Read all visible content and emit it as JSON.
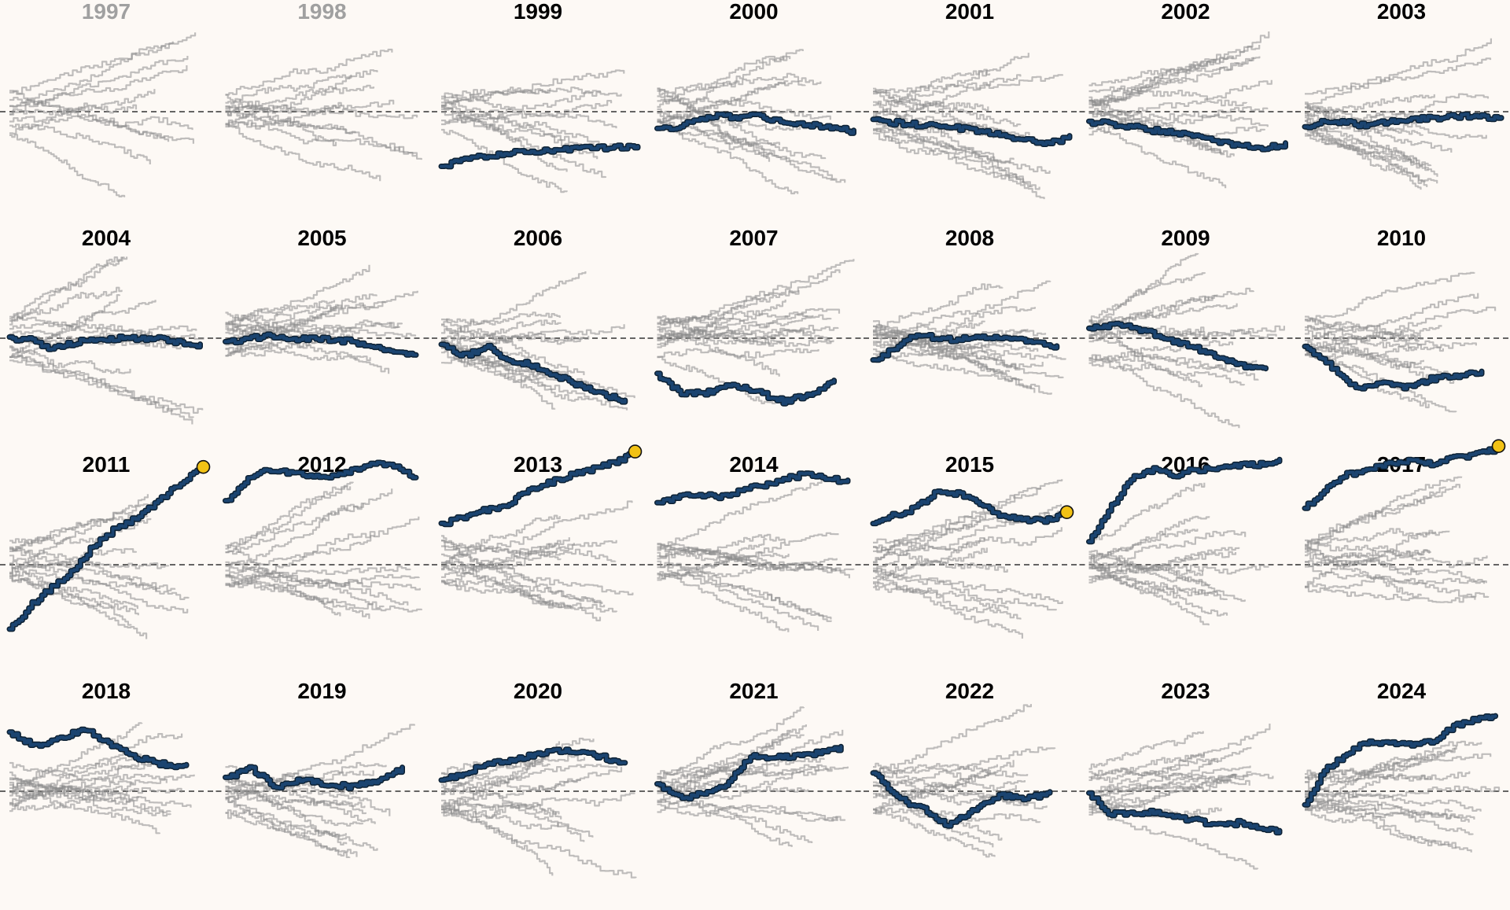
{
  "chart_data": {
    "type": "line",
    "layout": "small-multiples",
    "title": "",
    "xlabel": "",
    "ylabel": "",
    "baseline": 0,
    "grid": false,
    "legend": "none",
    "panels": [
      {
        "label": "1997",
        "label_color": "#a0a0a0",
        "background_series": 11,
        "highlight": null,
        "highlight_end_marker": false
      },
      {
        "label": "1998",
        "label_color": "#a0a0a0",
        "background_series": 12,
        "highlight": null,
        "highlight_end_marker": false
      },
      {
        "label": "1999",
        "label_color": "#000000",
        "background_series": 12,
        "highlight": [
          -0.62,
          -0.55,
          -0.5,
          -0.48,
          -0.46,
          -0.44,
          -0.43,
          -0.42,
          -0.41,
          -0.4,
          -0.4,
          -0.39,
          -0.4
        ],
        "highlight_end_marker": false
      },
      {
        "label": "2000",
        "label_color": "#000000",
        "background_series": 14,
        "highlight": [
          -0.2,
          -0.18,
          -0.08,
          -0.05,
          -0.06,
          -0.05,
          -0.1,
          -0.12,
          -0.15,
          -0.18,
          -0.22
        ],
        "highlight_end_marker": false
      },
      {
        "label": "2001",
        "label_color": "#000000",
        "background_series": 15,
        "highlight": [
          -0.1,
          -0.12,
          -0.14,
          -0.15,
          -0.17,
          -0.2,
          -0.24,
          -0.28,
          -0.32,
          -0.35,
          -0.28
        ],
        "highlight_end_marker": false
      },
      {
        "label": "2002",
        "label_color": "#000000",
        "background_series": 15,
        "highlight": [
          -0.12,
          -0.13,
          -0.16,
          -0.2,
          -0.22,
          -0.25,
          -0.3,
          -0.35,
          -0.38,
          -0.4,
          -0.36
        ],
        "highlight_end_marker": false
      },
      {
        "label": "2003",
        "label_color": "#000000",
        "background_series": 15,
        "highlight": [
          -0.18,
          -0.1,
          -0.12,
          -0.15,
          -0.12,
          -0.1,
          -0.08,
          -0.06,
          -0.05,
          -0.06,
          -0.08
        ],
        "highlight_end_marker": false
      },
      {
        "label": "2004",
        "label_color": "#000000",
        "background_series": 14,
        "highlight": [
          0.0,
          -0.02,
          -0.12,
          -0.05,
          -0.02,
          0.0,
          0.0,
          0.0,
          -0.05,
          -0.08
        ],
        "highlight_end_marker": false
      },
      {
        "label": "2005",
        "label_color": "#000000",
        "background_series": 14,
        "highlight": [
          -0.05,
          0.0,
          0.02,
          -0.02,
          0.0,
          -0.02,
          -0.04,
          -0.1,
          -0.15,
          -0.2
        ],
        "highlight_end_marker": false
      },
      {
        "label": "2006",
        "label_color": "#000000",
        "background_series": 15,
        "highlight": [
          -0.08,
          -0.2,
          -0.1,
          -0.25,
          -0.3,
          -0.42,
          -0.52,
          -0.62,
          -0.7
        ],
        "highlight_end_marker": false
      },
      {
        "label": "2007",
        "label_color": "#000000",
        "background_series": 15,
        "highlight": [
          -0.4,
          -0.62,
          -0.6,
          -0.52,
          -0.6,
          -0.7,
          -0.62,
          -0.48
        ],
        "highlight_end_marker": false
      },
      {
        "label": "2008",
        "label_color": "#000000",
        "background_series": 15,
        "highlight": [
          -0.25,
          -0.1,
          0.05,
          -0.02,
          0.0,
          0.0,
          0.0,
          -0.05,
          -0.1
        ],
        "highlight_end_marker": false
      },
      {
        "label": "2009",
        "label_color": "#000000",
        "background_series": 14,
        "highlight": [
          0.1,
          0.15,
          0.1,
          0.0,
          -0.08,
          -0.2,
          -0.3,
          -0.35
        ],
        "highlight_end_marker": false
      },
      {
        "label": "2010",
        "label_color": "#000000",
        "background_series": 14,
        "highlight": [
          -0.1,
          -0.3,
          -0.55,
          -0.5,
          -0.55,
          -0.45,
          -0.42,
          -0.38
        ],
        "highlight_end_marker": false
      },
      {
        "label": "2011",
        "label_color": "#000000",
        "background_series": 14,
        "highlight": [
          -0.72,
          -0.45,
          -0.25,
          -0.05,
          0.22,
          0.4,
          0.52,
          0.7,
          0.9,
          1.05
        ],
        "highlight_end_marker": true
      },
      {
        "label": "2012",
        "label_color": "#000000",
        "background_series": 14,
        "highlight": [
          0.7,
          0.95,
          1.05,
          1.02,
          0.98,
          0.98,
          1.05,
          1.12,
          1.08,
          0.95
        ],
        "highlight_end_marker": false
      },
      {
        "label": "2013",
        "label_color": "#000000",
        "background_series": 14,
        "highlight": [
          0.45,
          0.52,
          0.6,
          0.65,
          0.82,
          0.9,
          0.98,
          1.05,
          1.12,
          1.22
        ],
        "highlight_end_marker": true
      },
      {
        "label": "2014",
        "label_color": "#000000",
        "background_series": 14,
        "highlight": [
          0.68,
          0.75,
          0.78,
          0.75,
          0.82,
          0.88,
          0.95,
          1.0,
          0.95,
          0.92
        ],
        "highlight_end_marker": false
      },
      {
        "label": "2015",
        "label_color": "#000000",
        "background_series": 14,
        "highlight": [
          0.45,
          0.55,
          0.62,
          0.82,
          0.78,
          0.68,
          0.55,
          0.5,
          0.48,
          0.55
        ],
        "highlight_end_marker": true
      },
      {
        "label": "2016",
        "label_color": "#000000",
        "background_series": 14,
        "highlight": [
          0.25,
          0.62,
          0.95,
          1.05,
          0.98,
          1.05,
          1.05,
          1.1,
          1.1,
          1.15
        ],
        "highlight_end_marker": false
      },
      {
        "label": "2017",
        "label_color": "#000000",
        "background_series": 14,
        "highlight": [
          0.62,
          0.85,
          1.0,
          1.05,
          1.12,
          1.15,
          1.12,
          1.18,
          1.22,
          1.28
        ],
        "highlight_end_marker": true
      },
      {
        "label": "2018",
        "label_color": "#000000",
        "background_series": 14,
        "highlight": [
          0.65,
          0.5,
          0.58,
          0.7,
          0.5,
          0.38,
          0.3,
          0.28
        ],
        "highlight_end_marker": false
      },
      {
        "label": "2019",
        "label_color": "#000000",
        "background_series": 14,
        "highlight": [
          0.15,
          0.25,
          0.05,
          0.12,
          0.08,
          0.05,
          0.12,
          0.25
        ],
        "highlight_end_marker": false
      },
      {
        "label": "2020",
        "label_color": "#000000",
        "background_series": 14,
        "highlight": [
          0.12,
          0.2,
          0.3,
          0.35,
          0.4,
          0.45,
          0.42,
          0.38,
          0.3
        ],
        "highlight_end_marker": false
      },
      {
        "label": "2021",
        "label_color": "#000000",
        "background_series": 14,
        "highlight": [
          0.08,
          -0.08,
          -0.02,
          0.05,
          0.38,
          0.38,
          0.38,
          0.42,
          0.48
        ],
        "highlight_end_marker": false
      },
      {
        "label": "2022",
        "label_color": "#000000",
        "background_series": 14,
        "highlight": [
          0.2,
          -0.08,
          -0.2,
          -0.38,
          -0.2,
          -0.05,
          -0.08,
          -0.02
        ],
        "highlight_end_marker": false
      },
      {
        "label": "2023",
        "label_color": "#000000",
        "background_series": 14,
        "highlight": [
          -0.02,
          -0.25,
          -0.25,
          -0.22,
          -0.28,
          -0.32,
          -0.38,
          -0.35,
          -0.4,
          -0.45
        ],
        "highlight_end_marker": false
      },
      {
        "label": "2024",
        "label_color": "#000000",
        "background_series": 15,
        "highlight": [
          -0.15,
          0.25,
          0.42,
          0.55,
          0.52,
          0.52,
          0.55,
          0.72,
          0.8,
          0.82
        ],
        "highlight_end_marker": false
      }
    ]
  },
  "colors": {
    "background": "#fdf9f5",
    "highlight_line": "#1b4470",
    "highlight_outline": "#0d2133",
    "context_line": "#8c8c8c",
    "baseline": "#333333",
    "end_marker": "#f2c215"
  }
}
